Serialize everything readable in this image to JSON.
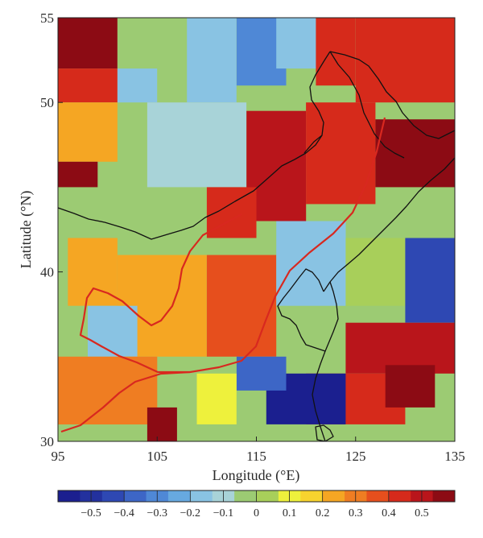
{
  "map": {
    "x_axis": {
      "title": "Longitude (°E)",
      "range": [
        95,
        135
      ],
      "ticks": [
        {
          "value": 95,
          "label": "95"
        },
        {
          "value": 105,
          "label": "105"
        },
        {
          "value": 115,
          "label": "115"
        },
        {
          "value": 125,
          "label": "125"
        },
        {
          "value": 135,
          "label": "135"
        }
      ]
    },
    "y_axis": {
      "title": "Latitude (°N)",
      "range": [
        30,
        55
      ],
      "ticks": [
        {
          "value": 30,
          "label": "30"
        },
        {
          "value": 40,
          "label": "40"
        },
        {
          "value": 50,
          "label": "50"
        },
        {
          "value": 55,
          "label": "55"
        }
      ]
    },
    "grid": false,
    "colorbar": {
      "position": "bottom",
      "range": [
        -0.6,
        0.6
      ],
      "ticks": [
        {
          "value": -0.5,
          "label": "−0.5"
        },
        {
          "value": -0.4,
          "label": "−0.4"
        },
        {
          "value": -0.3,
          "label": "−0.3"
        },
        {
          "value": -0.2,
          "label": "−0.2"
        },
        {
          "value": -0.1,
          "label": "−0.1"
        },
        {
          "value": 0,
          "label": "0"
        },
        {
          "value": 0.1,
          "label": "0.1"
        },
        {
          "value": 0.2,
          "label": "0.2"
        },
        {
          "value": 0.3,
          "label": "0.3"
        },
        {
          "value": 0.4,
          "label": "0.4"
        },
        {
          "value": 0.5,
          "label": "0.5"
        }
      ],
      "colors": [
        "#1b1f8f",
        "#23319e",
        "#2e48b3",
        "#3d66c6",
        "#4f88d6",
        "#67a9e0",
        "#89c3e3",
        "#a8d3d8",
        "#9ccb73",
        "#a8cf5a",
        "#eef13c",
        "#f7d32e",
        "#f5a623",
        "#ef7d22",
        "#e64f1d",
        "#d62a1b",
        "#b9151b",
        "#8c0b14"
      ]
    },
    "colors": {
      "border_lines": "#111111",
      "highlighted_boundary": "#d8281f",
      "no_data_fill": "#9ccb73"
    }
  },
  "chart_data": {
    "type": "heatmap",
    "title": "",
    "xlabel": "Longitude (°E)",
    "ylabel": "Latitude (°N)",
    "x_range": [
      95,
      135
    ],
    "y_range": [
      30,
      55
    ],
    "value_range": [
      -0.6,
      0.6
    ],
    "regions": [
      {
        "lon": [
          95,
          101
        ],
        "lat": [
          52,
          55
        ],
        "value": 0.55
      },
      {
        "lon": [
          95,
          101
        ],
        "lat": [
          50,
          52
        ],
        "value": 0.45
      },
      {
        "lon": [
          95,
          101
        ],
        "lat": [
          46.5,
          50
        ],
        "value": 0.2
      },
      {
        "lon": [
          95,
          99
        ],
        "lat": [
          45,
          46.5
        ],
        "value": 0.55
      },
      {
        "lon": [
          101,
          108
        ],
        "lat": [
          52,
          55
        ],
        "value": -0.05
      },
      {
        "lon": [
          101,
          105
        ],
        "lat": [
          50,
          52
        ],
        "value": -0.2
      },
      {
        "lon": [
          108,
          113
        ],
        "lat": [
          50,
          55
        ],
        "value": -0.2
      },
      {
        "lon": [
          113,
          118
        ],
        "lat": [
          51,
          55
        ],
        "value": -0.3
      },
      {
        "lon": [
          117,
          121
        ],
        "lat": [
          52,
          55
        ],
        "value": -0.15
      },
      {
        "lon": [
          121,
          125
        ],
        "lat": [
          51,
          55
        ],
        "value": 0.45
      },
      {
        "lon": [
          125,
          135
        ],
        "lat": [
          50,
          55
        ],
        "value": 0.4
      },
      {
        "lon": [
          104,
          114
        ],
        "lat": [
          45,
          50
        ],
        "value": -0.1
      },
      {
        "lon": [
          114,
          120
        ],
        "lat": [
          43,
          49.5
        ],
        "value": 0.5
      },
      {
        "lon": [
          120,
          127
        ],
        "lat": [
          44,
          50
        ],
        "value": 0.45
      },
      {
        "lon": [
          127,
          135
        ],
        "lat": [
          45,
          49
        ],
        "value": 0.55
      },
      {
        "lon": [
          110,
          115
        ],
        "lat": [
          42,
          45
        ],
        "value": 0.45
      },
      {
        "lon": [
          96,
          101
        ],
        "lat": [
          38,
          42
        ],
        "value": 0.2
      },
      {
        "lon": [
          101,
          110
        ],
        "lat": [
          35,
          41
        ],
        "value": 0.25
      },
      {
        "lon": [
          98,
          103
        ],
        "lat": [
          35,
          38
        ],
        "value": -0.15
      },
      {
        "lon": [
          110,
          117
        ],
        "lat": [
          35,
          41
        ],
        "value": 0.35
      },
      {
        "lon": [
          117,
          124
        ],
        "lat": [
          38,
          43
        ],
        "value": -0.15
      },
      {
        "lon": [
          124,
          130
        ],
        "lat": [
          38,
          42
        ],
        "value": 0.05
      },
      {
        "lon": [
          130,
          135
        ],
        "lat": [
          37,
          42
        ],
        "value": -0.45
      },
      {
        "lon": [
          124,
          135
        ],
        "lat": [
          34,
          37
        ],
        "value": 0.5
      },
      {
        "lon": [
          120,
          130
        ],
        "lat": [
          31,
          34
        ],
        "value": 0.4
      },
      {
        "lon": [
          128,
          133
        ],
        "lat": [
          32,
          34.5
        ],
        "value": 0.55
      },
      {
        "lon": [
          116,
          124
        ],
        "lat": [
          31,
          34
        ],
        "value": -0.55
      },
      {
        "lon": [
          113,
          118
        ],
        "lat": [
          33,
          35
        ],
        "value": -0.35
      },
      {
        "lon": [
          109,
          113
        ],
        "lat": [
          31,
          34
        ],
        "value": 0.1
      },
      {
        "lon": [
          95,
          105
        ],
        "lat": [
          31,
          35
        ],
        "value": 0.3
      },
      {
        "lon": [
          104,
          107
        ],
        "lat": [
          30,
          32
        ],
        "value": 0.55
      }
    ]
  }
}
